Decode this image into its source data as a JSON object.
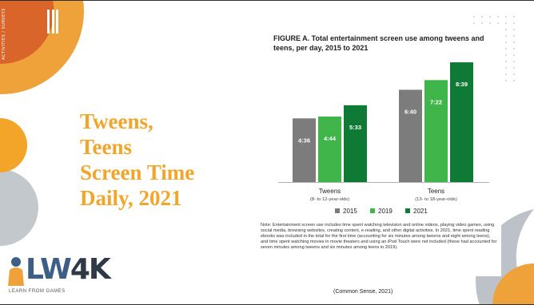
{
  "slide": {
    "side_text": "ACTIVITIES / SURVEYS",
    "title_lines": [
      "Tweens,",
      "Teens",
      "Screen Time",
      "Daily, 2021"
    ],
    "citation": "(Common Sense, 2021)",
    "logo": {
      "text_dark_part": "LW",
      "text_light_part": "4K",
      "subtitle": "LEARN FROM GAMES"
    },
    "colors": {
      "title": "#f3a52a",
      "orange_shape": "#f0a23a",
      "gray_shape": "#8f9aa3"
    }
  },
  "chart_data": {
    "type": "bar",
    "title": "FIGURE A. Total entertainment screen use among tweens and teens, per day, 2015 to 2021",
    "categories": [
      "Tweens",
      "Teens"
    ],
    "category_sublabels": [
      "(8- to 12-year-olds)",
      "(13- to 18-year-olds)"
    ],
    "series": [
      {
        "name": "2015",
        "color": "#7c7c7c",
        "values": [
          276,
          400
        ],
        "labels": [
          "4:36",
          "6:40"
        ]
      },
      {
        "name": "2019",
        "color": "#3fb54a",
        "values": [
          284,
          442
        ],
        "labels": [
          "4:44",
          "7:22"
        ]
      },
      {
        "name": "2021",
        "color": "#0f7a35",
        "values": [
          333,
          519
        ],
        "labels": [
          "5:33",
          "8:39"
        ]
      }
    ],
    "ylim": [
      0,
      540
    ],
    "legend_position": "bottom",
    "grid": false,
    "note": "Note: Entertainment screen use includes time spent watching television and online videos, playing video games, using social media, browsing websites, creating content, e-reading, and other digital activities. In 2021, time spent reading ebooks was included in the total for the first time (accounting for six minutes among tweens and eight among teens), and time spent watching movies in movie theaters and using an iPod Touch were not included (these had accounted for seven minutes among tweens and six minutes among teens in 2019)."
  }
}
